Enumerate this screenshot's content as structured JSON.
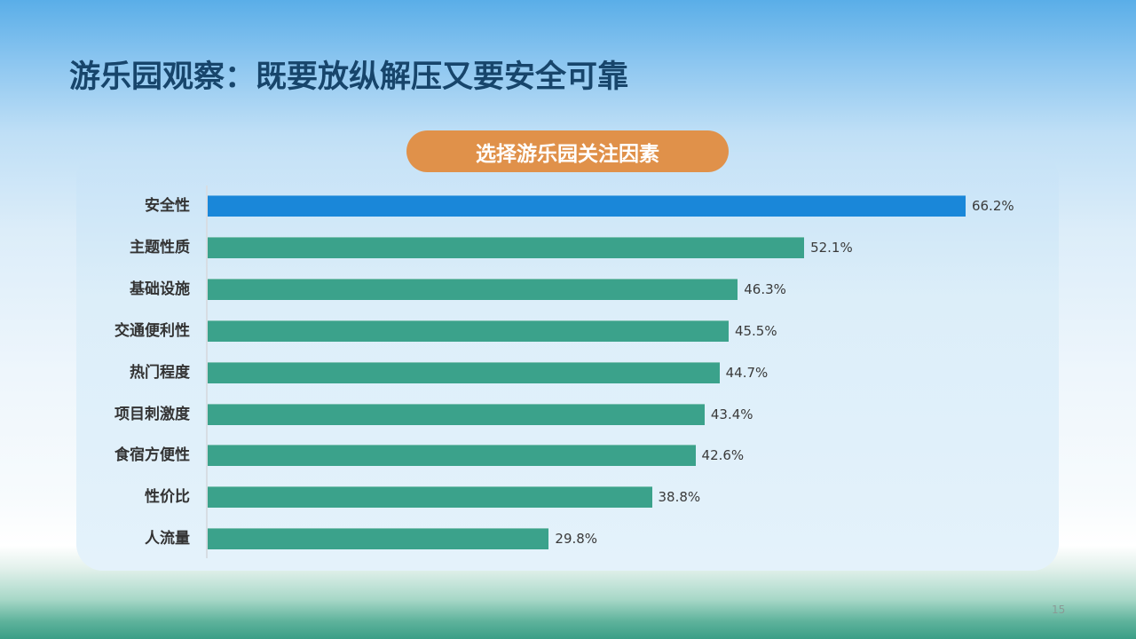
{
  "slide": {
    "title": "游乐园观察：既要放纵解压又要安全可靠",
    "chart_title": "选择游乐园关注因素",
    "page_number": "15"
  },
  "colors": {
    "highlight_bar": "#1a87d9",
    "bar": "#3ba28b",
    "pill": "#e0914a",
    "title": "#17456b"
  },
  "chart_data": {
    "type": "bar",
    "orientation": "horizontal",
    "title": "选择游乐园关注因素",
    "categories": [
      "安全性",
      "主题性质",
      "基础设施",
      "交通便利性",
      "热门程度",
      "项目刺激度",
      "食宿方便性",
      "性价比",
      "人流量"
    ],
    "values": [
      66.2,
      52.1,
      46.3,
      45.5,
      44.7,
      43.4,
      42.6,
      38.8,
      29.8
    ],
    "labels": [
      "66.2%",
      "52.1%",
      "46.3%",
      "45.5%",
      "44.7%",
      "43.4%",
      "42.6%",
      "38.8%",
      "29.8%"
    ],
    "unit": "%",
    "xlabel": "",
    "ylabel": "",
    "grid": false,
    "legend": null,
    "highlight_index": 0
  }
}
